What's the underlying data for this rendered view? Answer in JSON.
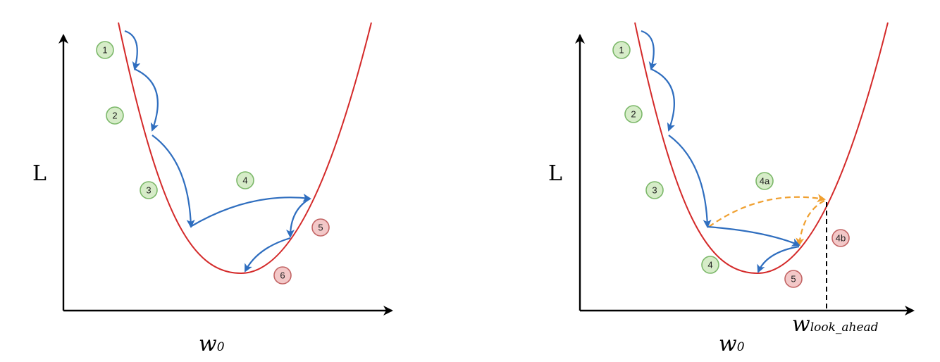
{
  "colors": {
    "curve": "#d42a2a",
    "step_arrow": "#2f6ebf",
    "lookahead_arrow": "#f0a030",
    "badge_green_fill": "#d6ecc8",
    "badge_green_stroke": "#7cb86a",
    "badge_red_fill": "#f3c8c8",
    "badge_red_stroke": "#c26464"
  },
  "left_panel": {
    "y_label": "L",
    "x_label_main": "w",
    "x_label_sub": "0",
    "badges": [
      {
        "label": "1",
        "kind": "green"
      },
      {
        "label": "2",
        "kind": "green"
      },
      {
        "label": "3",
        "kind": "green"
      },
      {
        "label": "4",
        "kind": "green"
      },
      {
        "label": "5",
        "kind": "red"
      },
      {
        "label": "6",
        "kind": "red"
      }
    ]
  },
  "right_panel": {
    "y_label": "L",
    "x_label_main": "w",
    "x_label_sub": "0",
    "lookahead_label_main": "w",
    "lookahead_label_sub": "look_ahead",
    "badges": [
      {
        "label": "1",
        "kind": "green"
      },
      {
        "label": "2",
        "kind": "green"
      },
      {
        "label": "3",
        "kind": "green"
      },
      {
        "label": "4a",
        "kind": "green"
      },
      {
        "label": "4b",
        "kind": "red"
      },
      {
        "label": "4",
        "kind": "green"
      },
      {
        "label": "5",
        "kind": "red"
      }
    ]
  }
}
